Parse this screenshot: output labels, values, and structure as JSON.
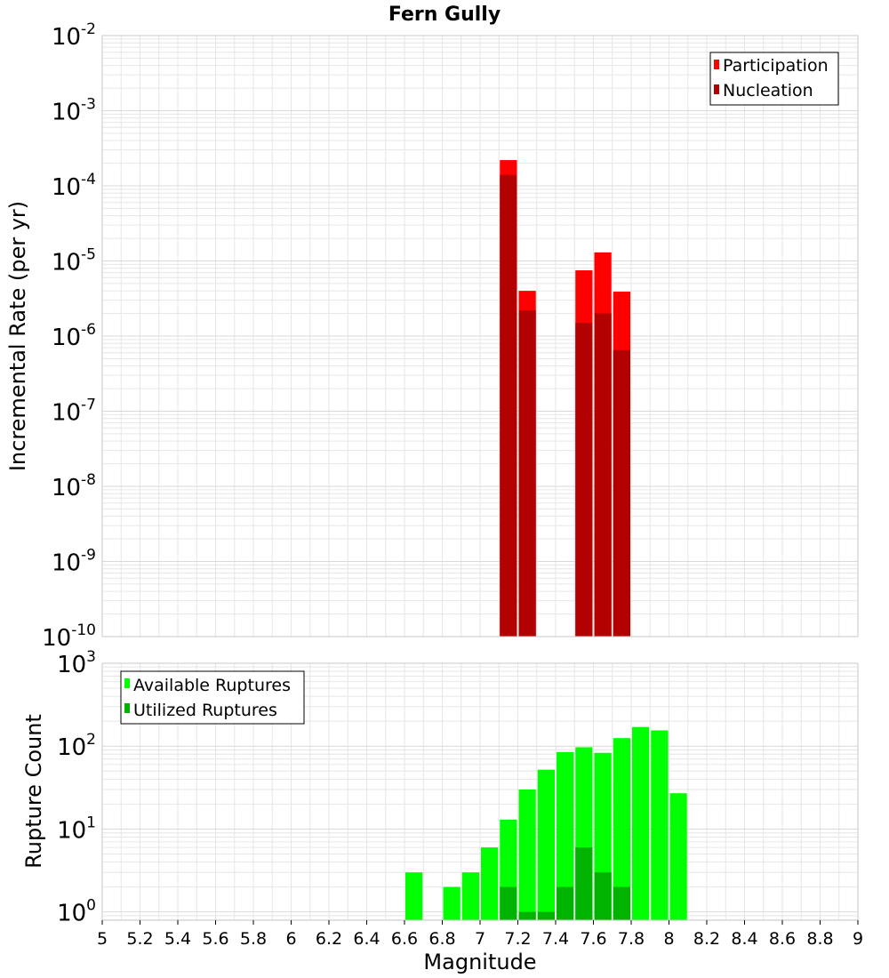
{
  "title": "Fern Gully",
  "colors": {
    "participation": "#ff0000",
    "nucleation": "#b30000",
    "available": "#00ff00",
    "utilized": "#00b300",
    "grid": "#e6e6e6",
    "frame": "#c8c8c8"
  },
  "chart_data": [
    {
      "type": "bar",
      "scale": "log",
      "ylabel": "Incremental Rate (per yr)",
      "xlabel": "",
      "xlim": [
        5,
        9
      ],
      "ylim_exp": [
        -10,
        -2
      ],
      "y_tick_base": "10",
      "y_tick_exponents": [
        "-10",
        "-9",
        "-8",
        "-7",
        "-6",
        "-5",
        "-4",
        "-3",
        "-2"
      ],
      "legend": [
        "Participation",
        "Nucleation"
      ],
      "legend_position": "top-right",
      "bin_width": 0.1,
      "series": [
        {
          "name": "Participation",
          "x": [
            7.15,
            7.25,
            7.55,
            7.65,
            7.75
          ],
          "values": [
            0.00022,
            4e-06,
            7.5e-06,
            1.3e-05,
            3.9e-06
          ]
        },
        {
          "name": "Nucleation",
          "x": [
            7.15,
            7.25,
            7.55,
            7.65,
            7.75
          ],
          "values": [
            0.00014,
            2.2e-06,
            1.5e-06,
            2e-06,
            6.5e-07
          ]
        }
      ]
    },
    {
      "type": "bar",
      "scale": "log",
      "ylabel": "Rupture Count",
      "xlabel": "Magnitude",
      "xlim": [
        5,
        9
      ],
      "ylim_exp": [
        -0.1,
        3
      ],
      "y_tick_base": "10",
      "y_tick_exponents": [
        "0",
        "1",
        "2",
        "3"
      ],
      "x_tick_labels": [
        "5",
        "5.2",
        "5.4",
        "5.6",
        "5.8",
        "6",
        "6.2",
        "6.4",
        "6.6",
        "6.8",
        "7",
        "7.2",
        "7.4",
        "7.6",
        "7.8",
        "8",
        "8.2",
        "8.4",
        "8.6",
        "8.8",
        "9"
      ],
      "legend": [
        "Available Ruptures",
        "Utilized Ruptures"
      ],
      "legend_position": "top-left",
      "bin_width": 0.1,
      "series": [
        {
          "name": "Available Ruptures",
          "x": [
            6.65,
            6.85,
            6.95,
            7.05,
            7.15,
            7.25,
            7.35,
            7.45,
            7.55,
            7.65,
            7.75,
            7.85,
            7.95,
            8.05
          ],
          "values": [
            3,
            2,
            3,
            6,
            13,
            30,
            52,
            85,
            97,
            83,
            125,
            170,
            155,
            27
          ]
        },
        {
          "name": "Utilized Ruptures",
          "x": [
            7.15,
            7.25,
            7.35,
            7.45,
            7.55,
            7.65,
            7.75
          ],
          "values": [
            2,
            1,
            1,
            2,
            6,
            3,
            2
          ]
        }
      ]
    }
  ]
}
